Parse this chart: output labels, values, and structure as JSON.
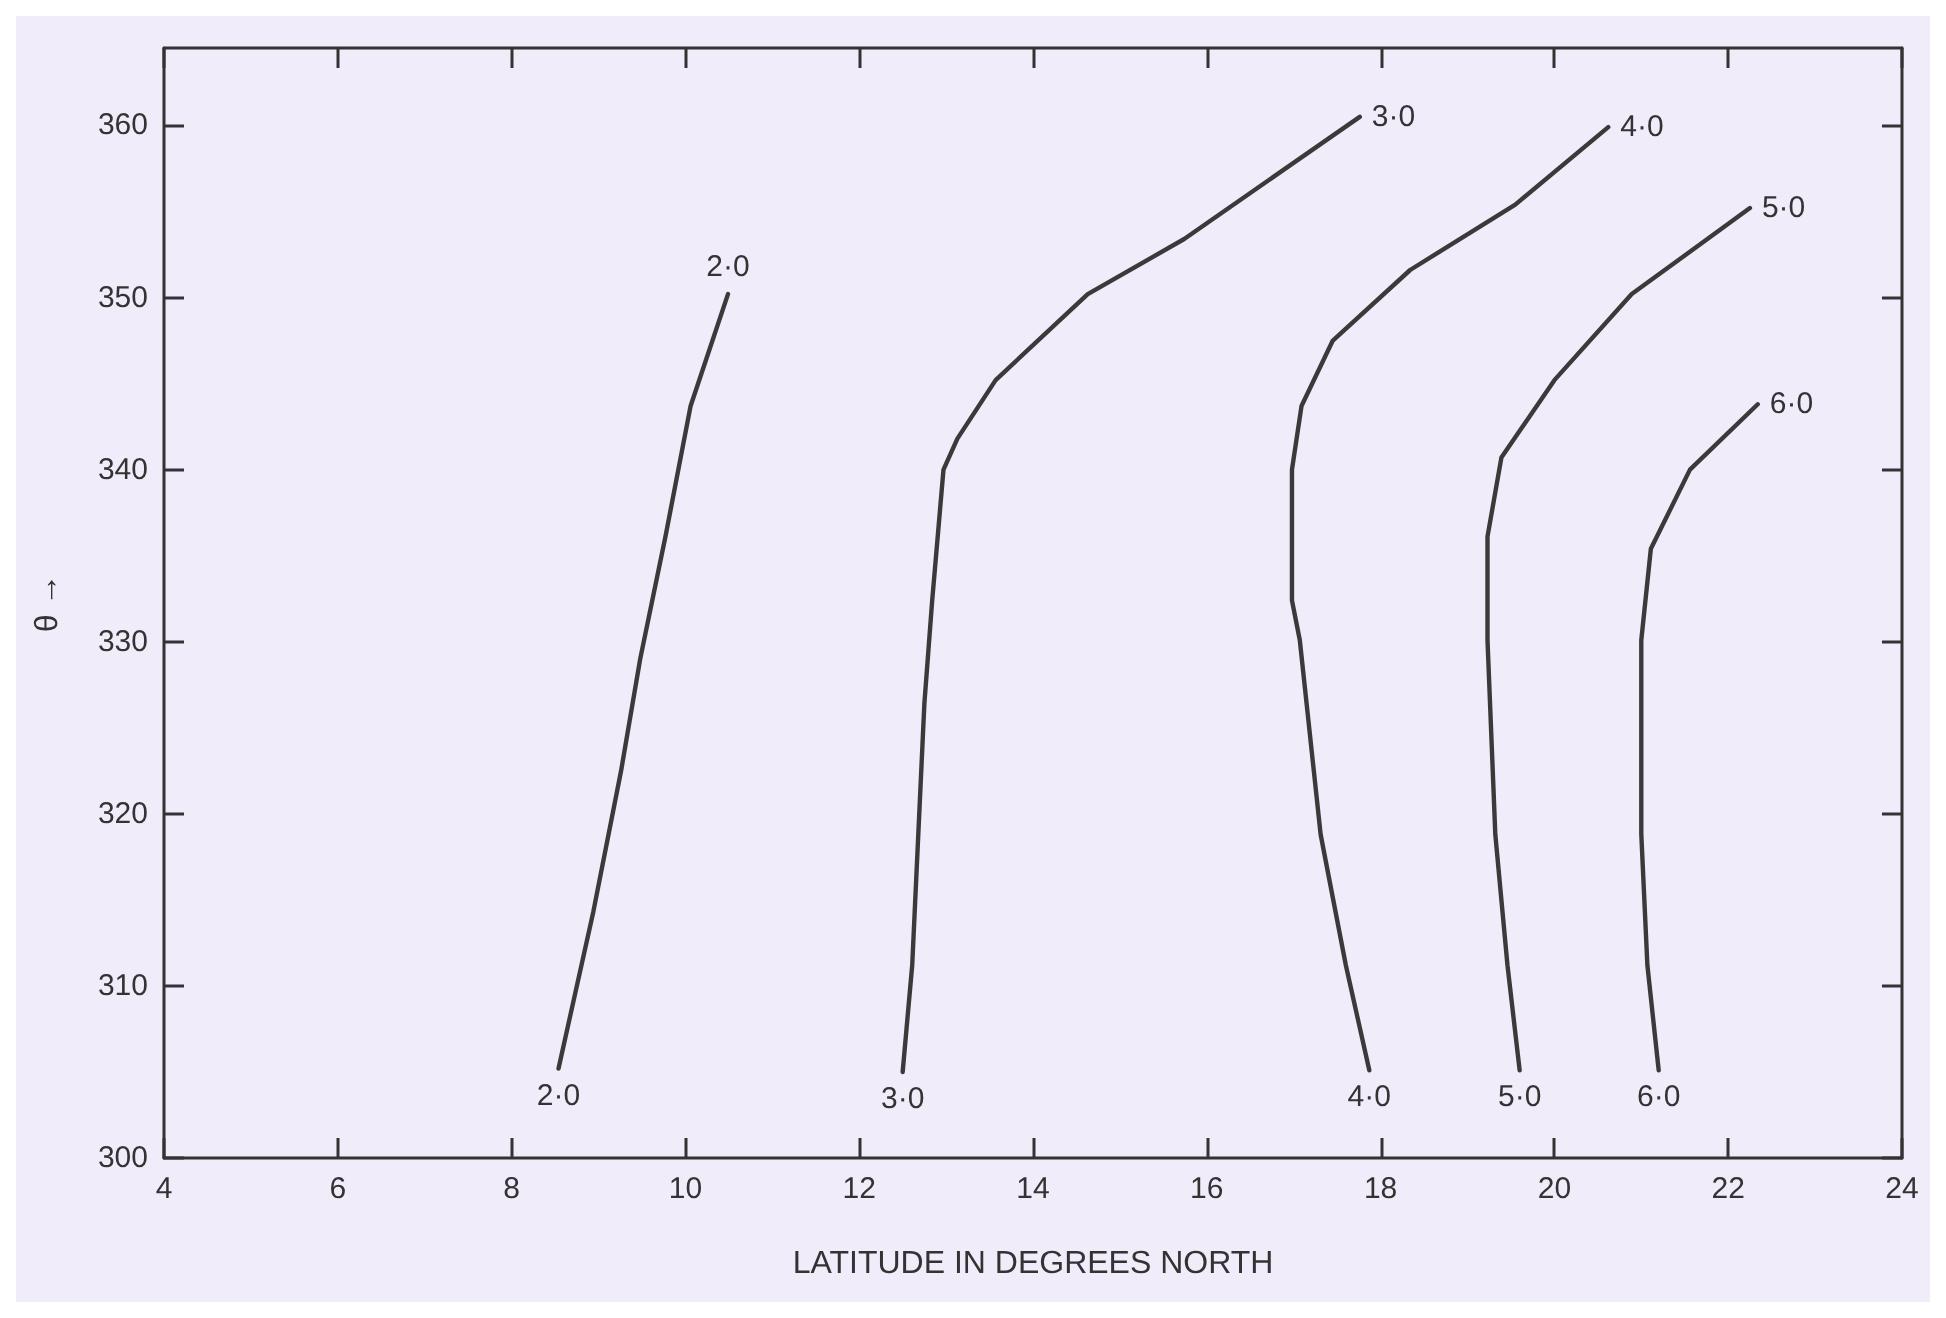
{
  "chart_data": {
    "type": "line",
    "xlabel": "LATITUDE IN DEGREES NORTH",
    "ylabel": "θ →",
    "xlim": [
      4,
      24
    ],
    "ylim": [
      300,
      364.5
    ],
    "xticks": [
      4,
      6,
      8,
      10,
      12,
      14,
      16,
      18,
      20,
      22,
      24
    ],
    "yticks": [
      300,
      310,
      320,
      330,
      340,
      350,
      360
    ],
    "grid": false,
    "marker": "none",
    "line_style": "solid",
    "series": [
      {
        "name": "2·0",
        "color": "#3a3a3a",
        "x": [
          8.54,
          8.94,
          9.26,
          9.48,
          9.77,
          10.06,
          10.49
        ],
        "values": [
          305.2,
          314.3,
          322.5,
          329,
          336.1,
          343.7,
          350.2
        ]
      },
      {
        "name": "3·0",
        "color": "#3a3a3a",
        "x": [
          12.5,
          12.61,
          12.75,
          12.84,
          12.97,
          13.13,
          13.57,
          14.63,
          15.74,
          17.76
        ],
        "values": [
          305,
          311.2,
          326.4,
          332.4,
          340,
          341.8,
          345.2,
          350.2,
          353.4,
          360.5
        ]
      },
      {
        "name": "4·0",
        "color": "#3a3a3a",
        "x": [
          17.87,
          17.6,
          17.31,
          17.07,
          16.98,
          16.98,
          17.09,
          17.45,
          18.34,
          19.55,
          20.62
        ],
        "values": [
          305.1,
          311.2,
          318.8,
          330.1,
          332.4,
          340,
          343.7,
          347.5,
          351.6,
          355.4,
          359.9
        ]
      },
      {
        "name": "5·0",
        "color": "#3a3a3a",
        "x": [
          19.6,
          19.46,
          19.32,
          19.23,
          19.23,
          19.39,
          20.0,
          20.89,
          22.25
        ],
        "values": [
          305.1,
          311.2,
          318.8,
          330.1,
          336.1,
          340.7,
          345.2,
          350.2,
          355.2
        ]
      },
      {
        "name": "6·0",
        "color": "#3a3a3a",
        "x": [
          21.2,
          21.07,
          21.0,
          21.0,
          21.11,
          21.56,
          22.34
        ],
        "values": [
          305.1,
          311.2,
          318.8,
          330.1,
          335.4,
          340,
          343.8
        ]
      }
    ]
  }
}
